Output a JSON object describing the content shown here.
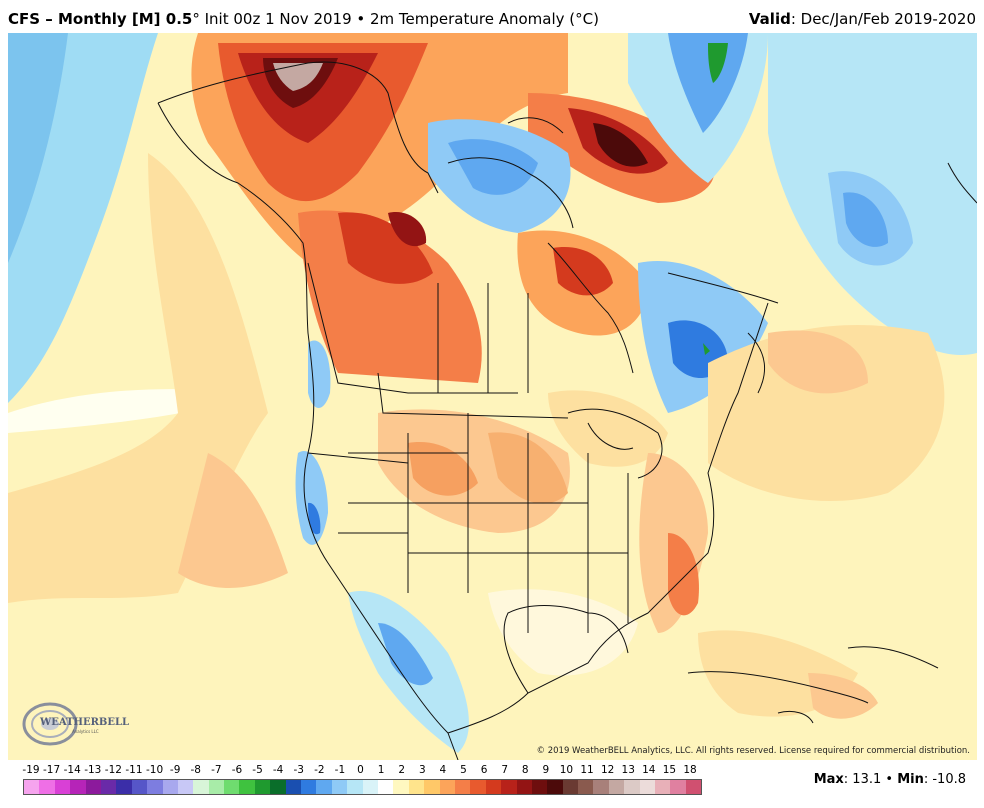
{
  "header": {
    "title_bold": "CFS – Monthly [M] 0.5",
    "title_rest": "° Init 00z 1 Nov 2019 • 2m Temperature Anomaly (°C)",
    "valid_label": "Valid",
    "valid_value": ": Dec/Jan/Feb 2019-2020"
  },
  "map": {
    "credit": "© 2019 WeatherBELL Analytics, LLC. All rights reserved. License required for commercial distribution.",
    "logo_text": "WEATHERBELL",
    "logo_sub": "Analytics LLC"
  },
  "legend": {
    "labels": [
      "-19",
      "-17",
      "-14",
      "-13",
      "-12",
      "-11",
      "-10",
      "-9",
      "-8",
      "-7",
      "-6",
      "-5",
      "-4",
      "-3",
      "-2",
      "-1",
      "0",
      "1",
      "2",
      "3",
      "4",
      "5",
      "6",
      "7",
      "8",
      "9",
      "10",
      "11",
      "12",
      "13",
      "14",
      "15",
      "18"
    ],
    "colors": [
      "#f6a4ee",
      "#ef6fe6",
      "#d940d6",
      "#b624b8",
      "#8c1a9c",
      "#6a2aa8",
      "#3b2ea8",
      "#5656c8",
      "#7d7de0",
      "#a8a8ee",
      "#c8c8f6",
      "#d8f5d8",
      "#a8eca8",
      "#6fdc6f",
      "#3fc23f",
      "#1f9a2f",
      "#0a6e2a",
      "#1a4fb0",
      "#2f7be0",
      "#5fa8f0",
      "#8fcaf6",
      "#b6e6f6",
      "#d9f3f8",
      "#ffffff",
      "#fff8c0",
      "#ffe48c",
      "#ffc868",
      "#fca45a",
      "#f47e48",
      "#e85a2e",
      "#d43a1e",
      "#b8221a",
      "#931414",
      "#6e0e0e",
      "#4c0a0a",
      "#6a3a32",
      "#8a5a4e",
      "#a8807a",
      "#c4a8a2",
      "#dccac6",
      "#ecdcda",
      "#e8b0b8",
      "#e080a0",
      "#d05070"
    ],
    "max_label": "Max",
    "max_value": ": 13.1 • ",
    "min_label": "Min",
    "min_value": ": -10.8"
  }
}
